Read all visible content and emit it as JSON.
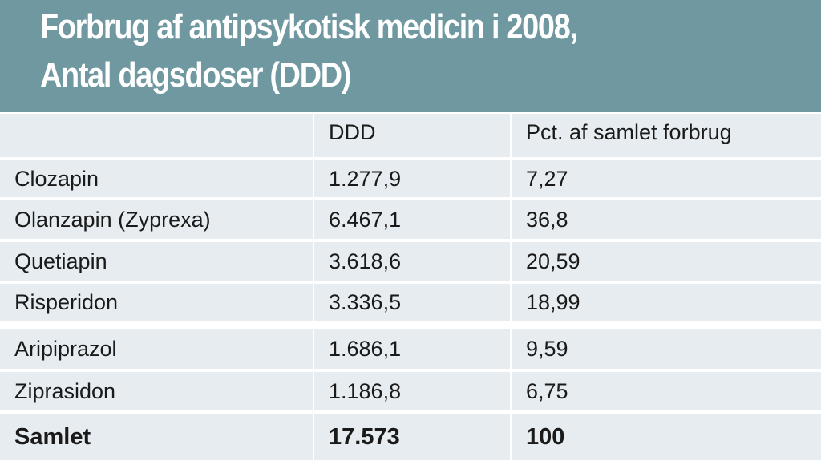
{
  "header": {
    "title_line1": "Forbrug af antipsykotisk medicin i 2008,",
    "title_line2": "Antal dagsdoser (DDD)"
  },
  "colors": {
    "header_bg": "#6f98a0",
    "row_bg": "#e6ecef",
    "title_text": "#ffffff",
    "row_separator": "#ffffff"
  },
  "chart_data": {
    "type": "table",
    "title": "Forbrug af antipsykotisk medicin i 2008, Antal dagsdoser (DDD)",
    "columns": [
      "",
      "DDD",
      "Pct. af samlet forbrug"
    ],
    "rows": [
      [
        "Clozapin",
        "1.277,9",
        "7,27"
      ],
      [
        "Olanzapin (Zyprexa)",
        "6.467,1",
        "36,8"
      ],
      [
        "Quetiapin",
        "3.618,6",
        "20,59"
      ],
      [
        "Risperidon",
        "3.336,5",
        "18,99"
      ],
      [
        "Aripiprazol",
        "1.686,1",
        "9,59"
      ],
      [
        "Ziprasidon",
        "1.186,8",
        "6,75"
      ]
    ],
    "total": [
      "Samlet",
      "17.573",
      "100"
    ],
    "series": [
      {
        "name": "DDD",
        "values": [
          1277.9,
          6467.1,
          3618.6,
          3336.5,
          1686.1,
          1186.8
        ]
      },
      {
        "name": "Pct. af samlet forbrug",
        "values": [
          7.27,
          36.8,
          20.59,
          18.99,
          9.59,
          6.75
        ]
      }
    ]
  }
}
